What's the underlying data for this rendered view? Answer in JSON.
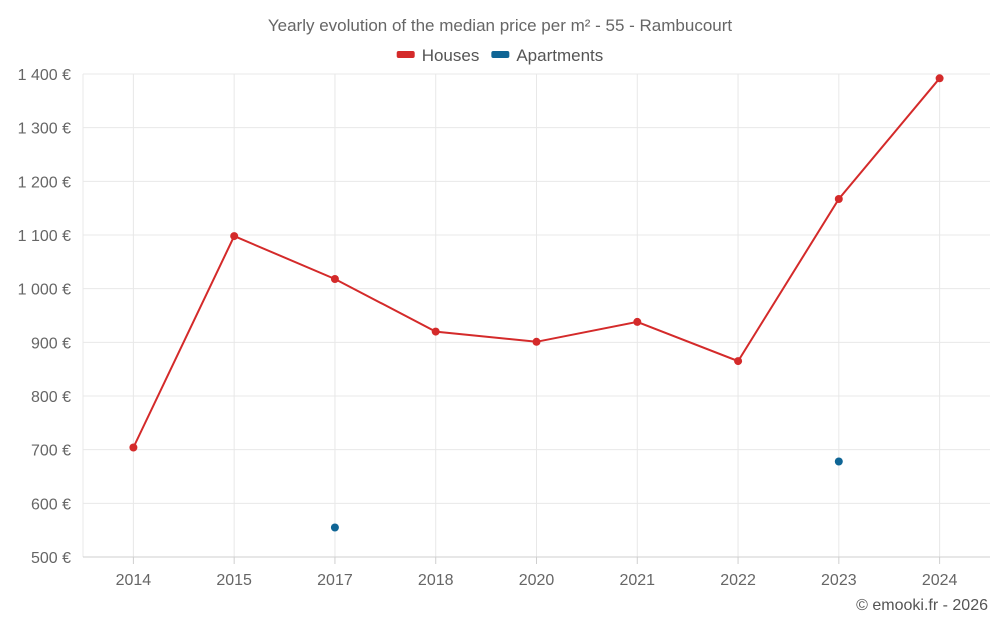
{
  "chart_data": {
    "type": "line",
    "title": "Yearly evolution of the median price per m² - 55 - Rambucourt",
    "categories": [
      "2014",
      "2015",
      "2017",
      "2018",
      "2020",
      "2021",
      "2022",
      "2023",
      "2024"
    ],
    "series": [
      {
        "name": "Houses",
        "color": "#d42a2a",
        "values": [
          704,
          1098,
          1018,
          920,
          901,
          938,
          865,
          1167,
          1392
        ]
      },
      {
        "name": "Apartments",
        "color": "#0f6595",
        "values": [
          null,
          null,
          555,
          null,
          null,
          null,
          null,
          678,
          null
        ]
      }
    ],
    "ylim": [
      500,
      1400
    ],
    "yticks": [
      500,
      600,
      700,
      800,
      900,
      1000,
      1100,
      1200,
      1300,
      1400
    ],
    "ytick_labels": [
      "500 €",
      "600 €",
      "700 €",
      "800 €",
      "900 €",
      "1 000 €",
      "1 100 €",
      "1 200 €",
      "1 300 €",
      "1 400 €"
    ],
    "xlabel": "",
    "ylabel": "",
    "grid": true,
    "legend_position": "top-center"
  },
  "credit": "© emooki.fr - 2026"
}
